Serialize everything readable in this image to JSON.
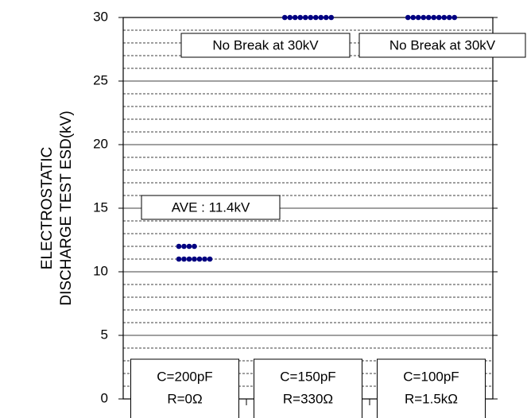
{
  "chart_data": {
    "type": "scatter",
    "y_label": [
      "ELECTROSTATIC",
      "DISCHARGE TEST ESD(kV)"
    ],
    "categories": [
      [
        "C=200pF",
        "R=0Ω"
      ],
      [
        "C=150pF",
        "R=330Ω"
      ],
      [
        "C=100pF",
        "R=1.5kΩ"
      ]
    ],
    "values": [
      [
        12,
        12,
        12,
        12,
        11,
        11,
        11,
        11,
        11,
        11,
        11
      ],
      [
        30,
        30,
        30,
        30,
        30,
        30,
        30,
        30,
        30,
        30
      ],
      [
        30,
        30,
        30,
        30,
        30,
        30,
        30,
        30,
        30,
        30
      ]
    ],
    "color": "#000080",
    "annotations": [
      "AVE : 11.4kV",
      "No Break at 30kV",
      "No Break at 30kV"
    ],
    "ylim": [
      0,
      30
    ],
    "yticks": [
      0,
      5,
      10,
      15,
      20,
      25,
      30
    ],
    "yminorticks": [
      1,
      2,
      3,
      4,
      6,
      7,
      8,
      9,
      11,
      12,
      13,
      14,
      16,
      17,
      18,
      19,
      21,
      22,
      23,
      24,
      26,
      27,
      28,
      29
    ],
    "grid": true
  }
}
